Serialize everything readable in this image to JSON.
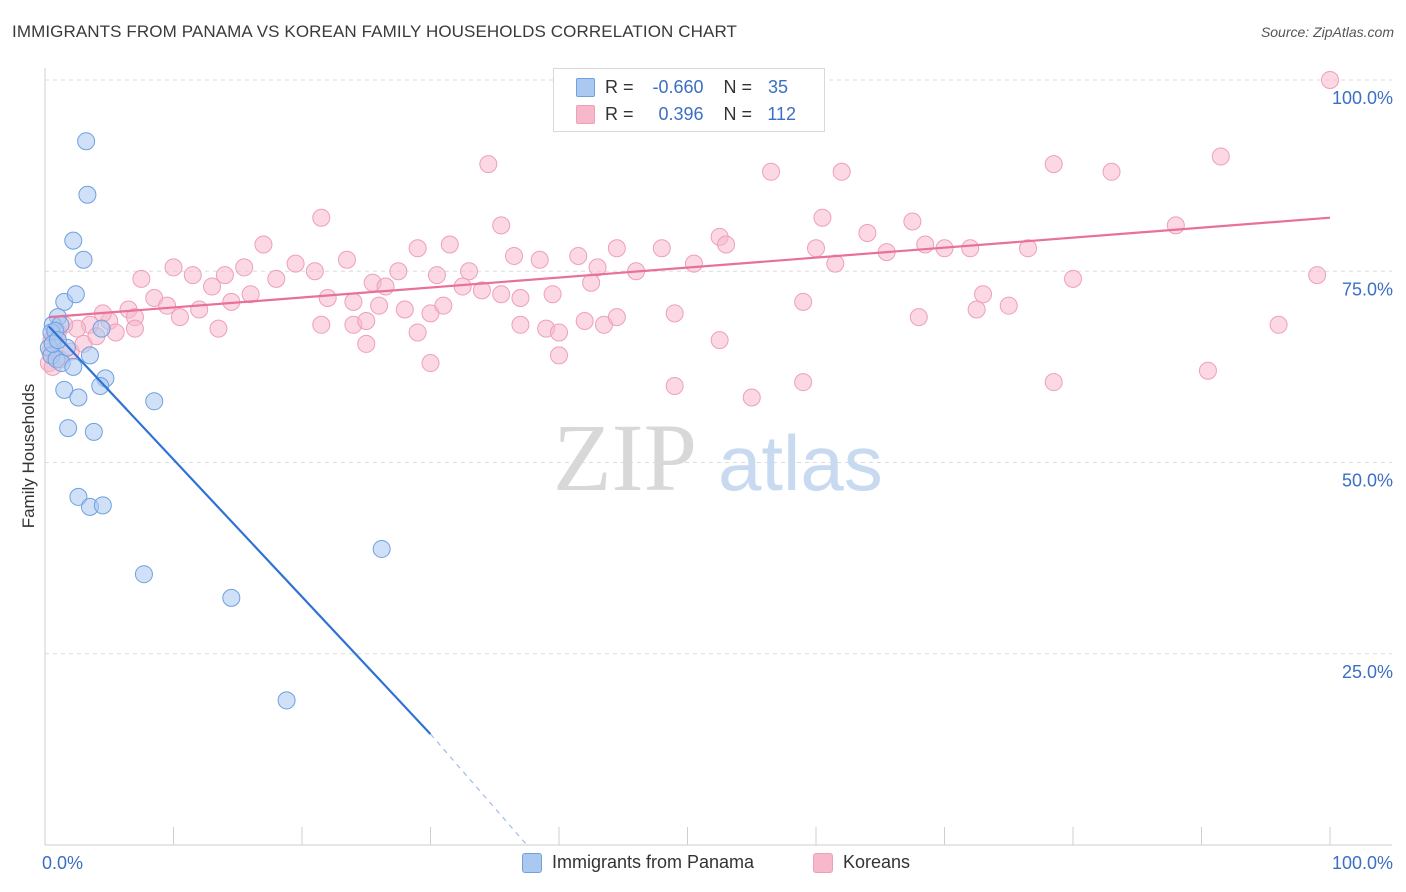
{
  "header": {
    "title": "IMMIGRANTS FROM PANAMA VS KOREAN FAMILY HOUSEHOLDS CORRELATION CHART",
    "source": "Source: ZipAtlas.com"
  },
  "watermark": {
    "zip": "ZIP",
    "atlas": "atlas"
  },
  "legend": {
    "rows": [
      {
        "r_label": "R =",
        "r_value": "-0.660",
        "n_label": "N =",
        "n_value": "35",
        "color": "#aac8f0"
      },
      {
        "r_label": "R =",
        "r_value": "0.396",
        "n_label": "N =",
        "n_value": "112",
        "color": "#f7b8cc"
      }
    ]
  },
  "bottom_legend": {
    "items": [
      {
        "label": "Immigrants from Panama",
        "color": "#aac8f0"
      },
      {
        "label": "Koreans",
        "color": "#f7b8cc"
      }
    ]
  },
  "chart_data": {
    "type": "scatter",
    "title": "IMMIGRANTS FROM PANAMA VS KOREAN FAMILY HOUSEHOLDS CORRELATION CHART",
    "xlabel": "",
    "ylabel": "Family Households",
    "xlim": [
      0,
      100
    ],
    "ylim": [
      0,
      100
    ],
    "x_tick_labels": [
      "0.0%",
      "100.0%"
    ],
    "y_tick_labels": [
      "25.0%",
      "50.0%",
      "75.0%",
      "100.0%"
    ],
    "y_ticks": [
      25,
      50,
      75,
      100
    ],
    "grid": true,
    "series": [
      {
        "name": "Immigrants from Panama",
        "color": "#6fa0e0",
        "fill": "#aac8f0",
        "line_color": "#2f72d6",
        "trend": {
          "x_start": 0.3,
          "y_start": 67.8,
          "x_end": 30.0,
          "y_end": 14.5,
          "dash_x_end": 37.5,
          "dash_y_end": 0
        },
        "points": [
          [
            3.2,
            92.0
          ],
          [
            3.3,
            85.0
          ],
          [
            2.2,
            79.0
          ],
          [
            3.0,
            76.5
          ],
          [
            1.5,
            71.0
          ],
          [
            2.4,
            72.0
          ],
          [
            1.0,
            69.0
          ],
          [
            0.6,
            68.0
          ],
          [
            1.2,
            68.0
          ],
          [
            0.5,
            67.0
          ],
          [
            0.8,
            67.2
          ],
          [
            4.4,
            67.5
          ],
          [
            0.3,
            65.0
          ],
          [
            0.5,
            64.0
          ],
          [
            1.7,
            65.0
          ],
          [
            0.9,
            63.5
          ],
          [
            1.3,
            63.0
          ],
          [
            3.5,
            64.0
          ],
          [
            2.2,
            62.5
          ],
          [
            4.7,
            61.0
          ],
          [
            4.3,
            60.0
          ],
          [
            1.5,
            59.5
          ],
          [
            2.6,
            58.5
          ],
          [
            8.5,
            58.0
          ],
          [
            1.8,
            54.5
          ],
          [
            3.8,
            54.0
          ],
          [
            2.6,
            45.5
          ],
          [
            3.5,
            44.2
          ],
          [
            4.5,
            44.4
          ],
          [
            26.2,
            38.7
          ],
          [
            7.7,
            35.4
          ],
          [
            14.5,
            32.3
          ],
          [
            18.8,
            18.9
          ],
          [
            0.6,
            65.5
          ],
          [
            1.0,
            66.0
          ]
        ]
      },
      {
        "name": "Koreans",
        "color": "#eea0b8",
        "fill": "#f7b8cc",
        "line_color": "#e8709a",
        "trend": {
          "x_start": 0.3,
          "y_start": 69.0,
          "x_end": 100.0,
          "y_end": 82.0
        },
        "points": [
          [
            100.0,
            100.0
          ],
          [
            91.5,
            90.0
          ],
          [
            34.5,
            89.0
          ],
          [
            56.5,
            88.0
          ],
          [
            62.0,
            88.0
          ],
          [
            78.5,
            89.0
          ],
          [
            83.0,
            88.0
          ],
          [
            21.5,
            82.0
          ],
          [
            60.5,
            82.0
          ],
          [
            67.5,
            81.5
          ],
          [
            88.0,
            81.0
          ],
          [
            35.5,
            81.0
          ],
          [
            52.5,
            79.5
          ],
          [
            64.0,
            80.0
          ],
          [
            68.5,
            78.5
          ],
          [
            70.0,
            78.0
          ],
          [
            72.0,
            78.0
          ],
          [
            76.5,
            78.0
          ],
          [
            17.0,
            78.5
          ],
          [
            29.0,
            78.0
          ],
          [
            31.5,
            78.5
          ],
          [
            44.5,
            78.0
          ],
          [
            48.0,
            78.0
          ],
          [
            53.0,
            78.5
          ],
          [
            60.0,
            78.0
          ],
          [
            65.5,
            77.5
          ],
          [
            61.5,
            76.0
          ],
          [
            36.5,
            77.0
          ],
          [
            38.5,
            76.5
          ],
          [
            41.5,
            77.0
          ],
          [
            43.0,
            75.5
          ],
          [
            33.0,
            75.0
          ],
          [
            21.0,
            75.0
          ],
          [
            27.5,
            75.0
          ],
          [
            30.5,
            74.5
          ],
          [
            32.5,
            73.0
          ],
          [
            34.0,
            72.5
          ],
          [
            35.5,
            72.0
          ],
          [
            37.0,
            71.5
          ],
          [
            39.5,
            72.0
          ],
          [
            42.5,
            73.5
          ],
          [
            46.0,
            75.0
          ],
          [
            50.5,
            76.0
          ],
          [
            18.0,
            74.0
          ],
          [
            19.5,
            76.0
          ],
          [
            23.5,
            76.5
          ],
          [
            25.5,
            73.5
          ],
          [
            26.5,
            73.0
          ],
          [
            14.0,
            74.5
          ],
          [
            13.0,
            73.0
          ],
          [
            15.5,
            75.5
          ],
          [
            10.0,
            75.5
          ],
          [
            11.5,
            74.5
          ],
          [
            7.5,
            74.0
          ],
          [
            8.5,
            71.5
          ],
          [
            9.5,
            70.5
          ],
          [
            10.5,
            69.0
          ],
          [
            12.0,
            70.0
          ],
          [
            14.5,
            71.0
          ],
          [
            16.0,
            72.0
          ],
          [
            22.0,
            71.5
          ],
          [
            24.0,
            71.0
          ],
          [
            26.0,
            70.5
          ],
          [
            28.0,
            70.0
          ],
          [
            30.0,
            69.5
          ],
          [
            31.0,
            70.5
          ],
          [
            6.5,
            70.0
          ],
          [
            7.0,
            69.0
          ],
          [
            5.0,
            68.5
          ],
          [
            4.5,
            69.5
          ],
          [
            3.5,
            68.0
          ],
          [
            2.5,
            67.5
          ],
          [
            1.5,
            68.0
          ],
          [
            1.0,
            67.0
          ],
          [
            0.7,
            66.5
          ],
          [
            0.5,
            66.0
          ],
          [
            0.4,
            64.5
          ],
          [
            0.3,
            63.0
          ],
          [
            0.6,
            62.5
          ],
          [
            1.2,
            63.5
          ],
          [
            2.0,
            64.5
          ],
          [
            3.0,
            65.5
          ],
          [
            4.0,
            66.5
          ],
          [
            5.5,
            67.0
          ],
          [
            7.0,
            67.5
          ],
          [
            13.5,
            67.5
          ],
          [
            21.5,
            68.0
          ],
          [
            24.0,
            68.0
          ],
          [
            25.0,
            68.5
          ],
          [
            29.0,
            67.0
          ],
          [
            37.0,
            68.0
          ],
          [
            39.0,
            67.5
          ],
          [
            40.0,
            67.0
          ],
          [
            42.0,
            68.5
          ],
          [
            43.5,
            68.0
          ],
          [
            44.5,
            69.0
          ],
          [
            49.0,
            69.5
          ],
          [
            59.0,
            71.0
          ],
          [
            68.0,
            69.0
          ],
          [
            72.5,
            70.0
          ],
          [
            75.0,
            70.5
          ],
          [
            96.0,
            68.0
          ],
          [
            25.0,
            65.5
          ],
          [
            40.0,
            64.0
          ],
          [
            49.0,
            60.0
          ],
          [
            55.0,
            58.5
          ],
          [
            59.0,
            60.5
          ],
          [
            78.5,
            60.5
          ],
          [
            90.5,
            62.0
          ],
          [
            30.0,
            63.0
          ],
          [
            73.0,
            72.0
          ],
          [
            80.0,
            74.0
          ],
          [
            99.0,
            74.5
          ],
          [
            52.5,
            66.0
          ]
        ]
      }
    ]
  }
}
